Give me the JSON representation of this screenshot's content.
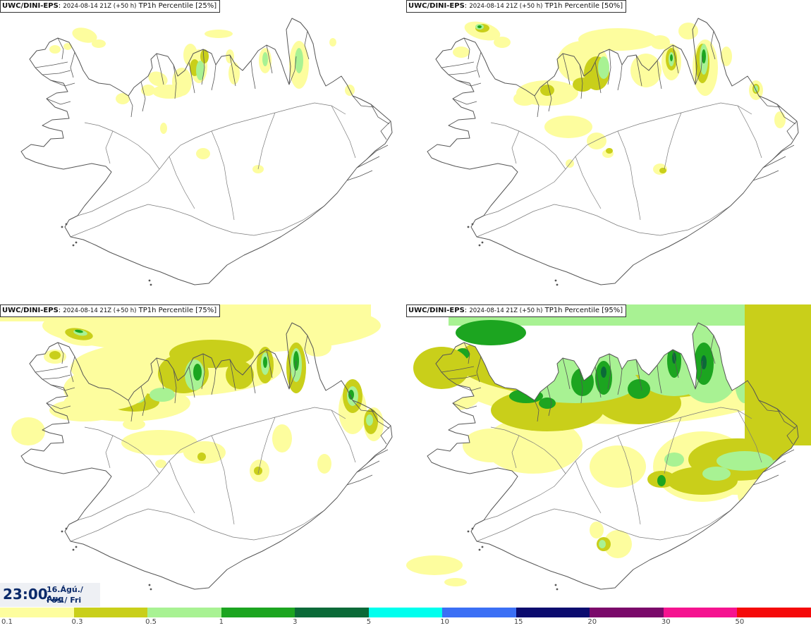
{
  "colors": {
    "c01": "#fdfd9e",
    "c03": "#c9cf1a",
    "c05": "#a8f293",
    "c1": "#1ca520",
    "c3": "#0b6a38",
    "coast": "#555555",
    "road": "#7a7a7a"
  },
  "panels": [
    {
      "source": "UWC/DINI-EPS",
      "run": "2024-08-14 21Z (+50 h)",
      "product": "TP1h Percentile [25%]",
      "percentile": 25
    },
    {
      "source": "UWC/DINI-EPS",
      "run": "2024-08-14 21Z (+50 h)",
      "product": "TP1h Percentile [50%]",
      "percentile": 50
    },
    {
      "source": "UWC/DINI-EPS",
      "run": "2024-08-14 21Z (+50 h)",
      "product": "TP1h Percentile [75%]",
      "percentile": 75
    },
    {
      "source": "UWC/DINI-EPS",
      "run": "2024-08-14 21Z (+50 h)",
      "product": "TP1h Percentile [95%]",
      "percentile": 95
    }
  ],
  "valid_time": {
    "time": "23:00",
    "date_line1": "16.Ágú./ Aug",
    "date_line2": "Fös./ Fri"
  },
  "legend": {
    "colors": [
      "#fdfd9e",
      "#c9cf1a",
      "#a8f293",
      "#1ca520",
      "#0b6a38",
      "#00ffee",
      "#3b6ff5",
      "#0b0b6e",
      "#7a0a6a",
      "#f51390",
      "#f50a0a"
    ],
    "labels": [
      "0.1",
      "0.3",
      "0.5",
      "1",
      "3",
      "5",
      "10",
      "15",
      "20",
      "30",
      "50"
    ]
  }
}
